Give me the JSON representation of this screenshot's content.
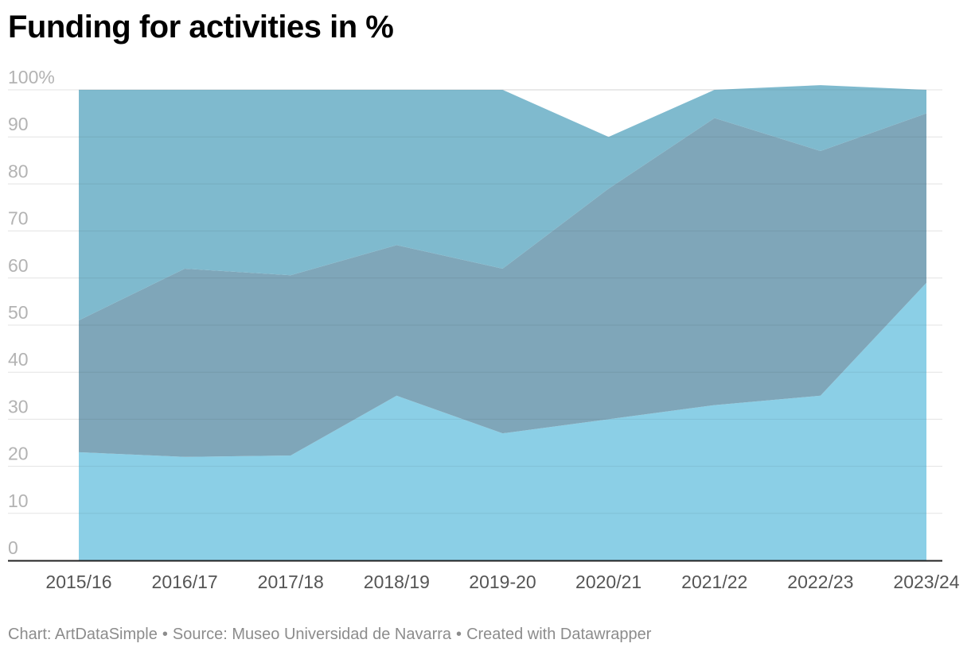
{
  "title": "Funding for activities in %",
  "footer": {
    "chart": "Chart: ArtDataSimple",
    "source": "Source: Museo Universidad de Navarra",
    "created": "Created with Datawrapper",
    "separator": "•"
  },
  "chart_data": {
    "type": "area",
    "title": "Funding for activities in %",
    "xlabel": "",
    "ylabel": "",
    "categories": [
      "2015/16",
      "2016/17",
      "2017/18",
      "2018/19",
      "2019-20",
      "2020/21",
      "2021/22",
      "2022/23",
      "2023/24"
    ],
    "y_ticks": [
      "0",
      "10",
      "20",
      "30",
      "40",
      "50",
      "60",
      "70",
      "80",
      "90",
      "100%"
    ],
    "ylim": [
      0,
      100
    ],
    "grid": true,
    "legend": "none",
    "stacked": true,
    "series": [
      {
        "values": [
          23,
          22,
          22.3,
          35,
          27,
          30,
          33,
          35,
          59
        ],
        "color": "#8bcfe6"
      },
      {
        "values": [
          28,
          40,
          38.3,
          32,
          35,
          49,
          61,
          52,
          36
        ],
        "color": "#7fa6b9"
      },
      {
        "values": [
          49,
          38,
          39.4,
          33,
          38,
          11,
          6,
          14,
          5
        ],
        "color": "#7fbace"
      }
    ]
  }
}
